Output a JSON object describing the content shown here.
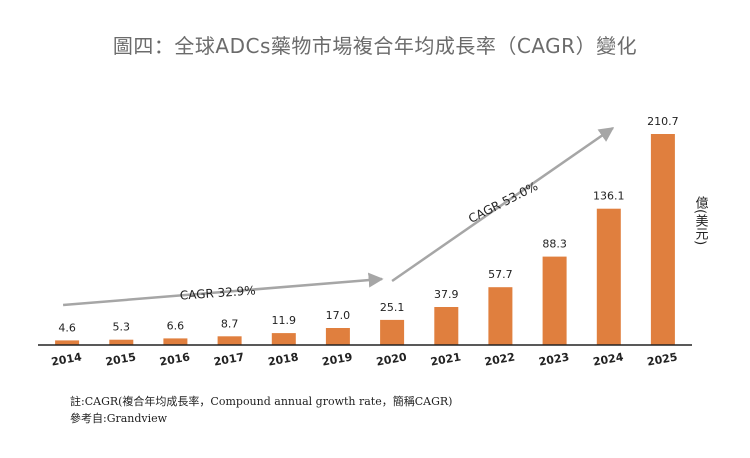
{
  "title": "圖四：全球ADCs藥物市場複合年均成長率（CAGR）變化",
  "chart_data": {
    "type": "bar",
    "categories": [
      "2014",
      "2015",
      "2016",
      "2017",
      "2018",
      "2019",
      "2020",
      "2021",
      "2022",
      "2023",
      "2024",
      "2025"
    ],
    "values": [
      4.6,
      5.3,
      6.6,
      8.7,
      11.9,
      17.0,
      25.1,
      37.9,
      57.7,
      88.3,
      136.1,
      210.7
    ],
    "value_labels": [
      "4.6",
      "5.3",
      "6.6",
      "8.7",
      "11.9",
      "17.0",
      "25.1",
      "37.9",
      "57.7",
      "88.3",
      "136.1",
      "210.7"
    ],
    "ylabel": "億(美元)",
    "ylim": [
      0,
      210.7
    ],
    "grid": false,
    "legend": "none",
    "bar_color": "#e07f3e",
    "annotations": [
      {
        "label": "CAGR 32.9%",
        "from": "2014",
        "to": "2020"
      },
      {
        "label": "CAGR 53.0%",
        "from": "2020",
        "to": "2025"
      }
    ]
  },
  "colors": {
    "bar": "#e07f3e",
    "arrow": "#a6a6a6",
    "axis": "#222222",
    "title": "#6b6b6b"
  },
  "footnotes": {
    "note": "註:CAGR(複合年均成長率，Compound annual growth rate，簡稱CAGR)",
    "source": "參考自:Grandview"
  }
}
